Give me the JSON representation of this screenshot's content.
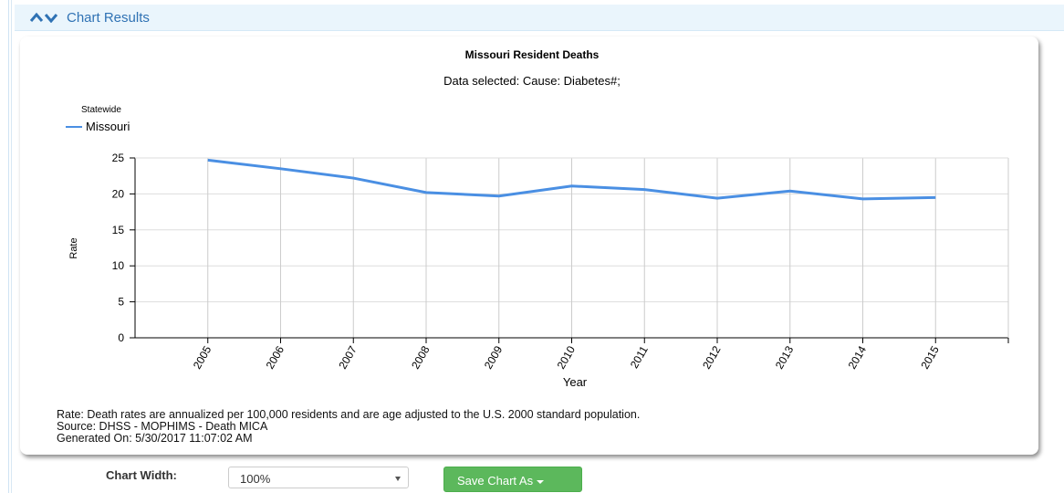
{
  "panel": {
    "title": "Chart Results"
  },
  "chart_data": {
    "type": "line",
    "title": "Missouri Resident Deaths",
    "subtitle": "Data selected: Cause: Diabetes#;",
    "legend_title": "Statewide",
    "x_label": "Year",
    "y_label": "Rate",
    "x": [
      2005,
      2006,
      2007,
      2008,
      2009,
      2010,
      2011,
      2012,
      2013,
      2014,
      2015
    ],
    "series": [
      {
        "name": "Missouri",
        "color": "#4a8fe3",
        "values": [
          24.7,
          23.5,
          22.2,
          20.2,
          19.7,
          21.1,
          20.6,
          19.4,
          20.4,
          19.3,
          19.5
        ]
      }
    ],
    "xlim": [
      2004,
      2016
    ],
    "xticks": [
      2005,
      2006,
      2007,
      2008,
      2009,
      2010,
      2011,
      2012,
      2013,
      2014,
      2015
    ],
    "ylim": [
      0,
      25
    ],
    "yticks": [
      0,
      5,
      10,
      15,
      20,
      25
    ],
    "grid": true,
    "legend_position": "top-left"
  },
  "notes": [
    "Rate: Death rates are annualized per 100,000 residents and are age adjusted to the U.S. 2000 standard population.",
    "Source: DHSS - MOPHIMS - Death MICA",
    "Generated On: 5/30/2017 11:07:02 AM"
  ],
  "controls": {
    "width_label": "Chart Width:",
    "width_value": "100%",
    "save_button": "Save Chart As"
  }
}
